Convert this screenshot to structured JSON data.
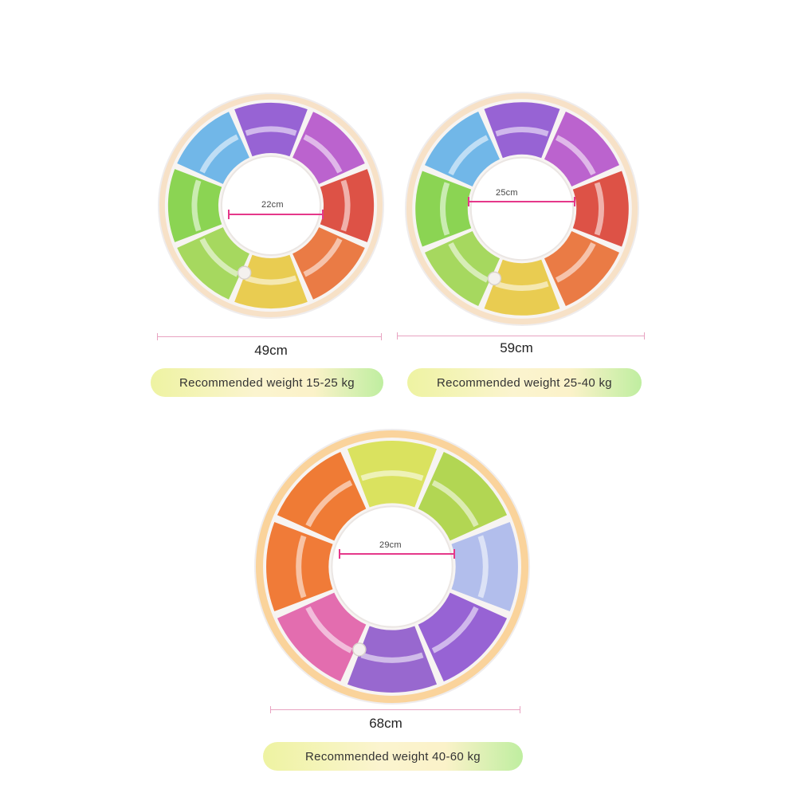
{
  "rings": [
    {
      "inner_label": "22cm",
      "outer_label": "49cm",
      "weight_label": "Recommended weight 15-25 kg",
      "segment_colors": [
        "#8a4fcf",
        "#b34fc8",
        "#d93b2e",
        "#e86a2c",
        "#e7c63a",
        "#9bd44a",
        "#7ccf3c",
        "#5faee6"
      ],
      "rim_color": "#f2c99a"
    },
    {
      "inner_label": "25cm",
      "outer_label": "59cm",
      "weight_label": "Recommended weight 25-40 kg",
      "segment_colors": [
        "#8a4fcf",
        "#b34fc8",
        "#d93b2e",
        "#e86a2c",
        "#e7c63a",
        "#9bd44a",
        "#7ccf3c",
        "#5faee6"
      ],
      "rim_color": "#f2c99a"
    },
    {
      "inner_label": "29cm",
      "outer_label": "68cm",
      "weight_label": "Recommended weight 40-60 kg",
      "segment_colors": [
        "#d6df4a",
        "#a9d23c",
        "#a9b6ea",
        "#8a4fcf",
        "#8b54c9",
        "#e05aa5",
        "#ef6a1e",
        "#ee6a1a"
      ],
      "rim_color": "#f7b04a"
    }
  ]
}
